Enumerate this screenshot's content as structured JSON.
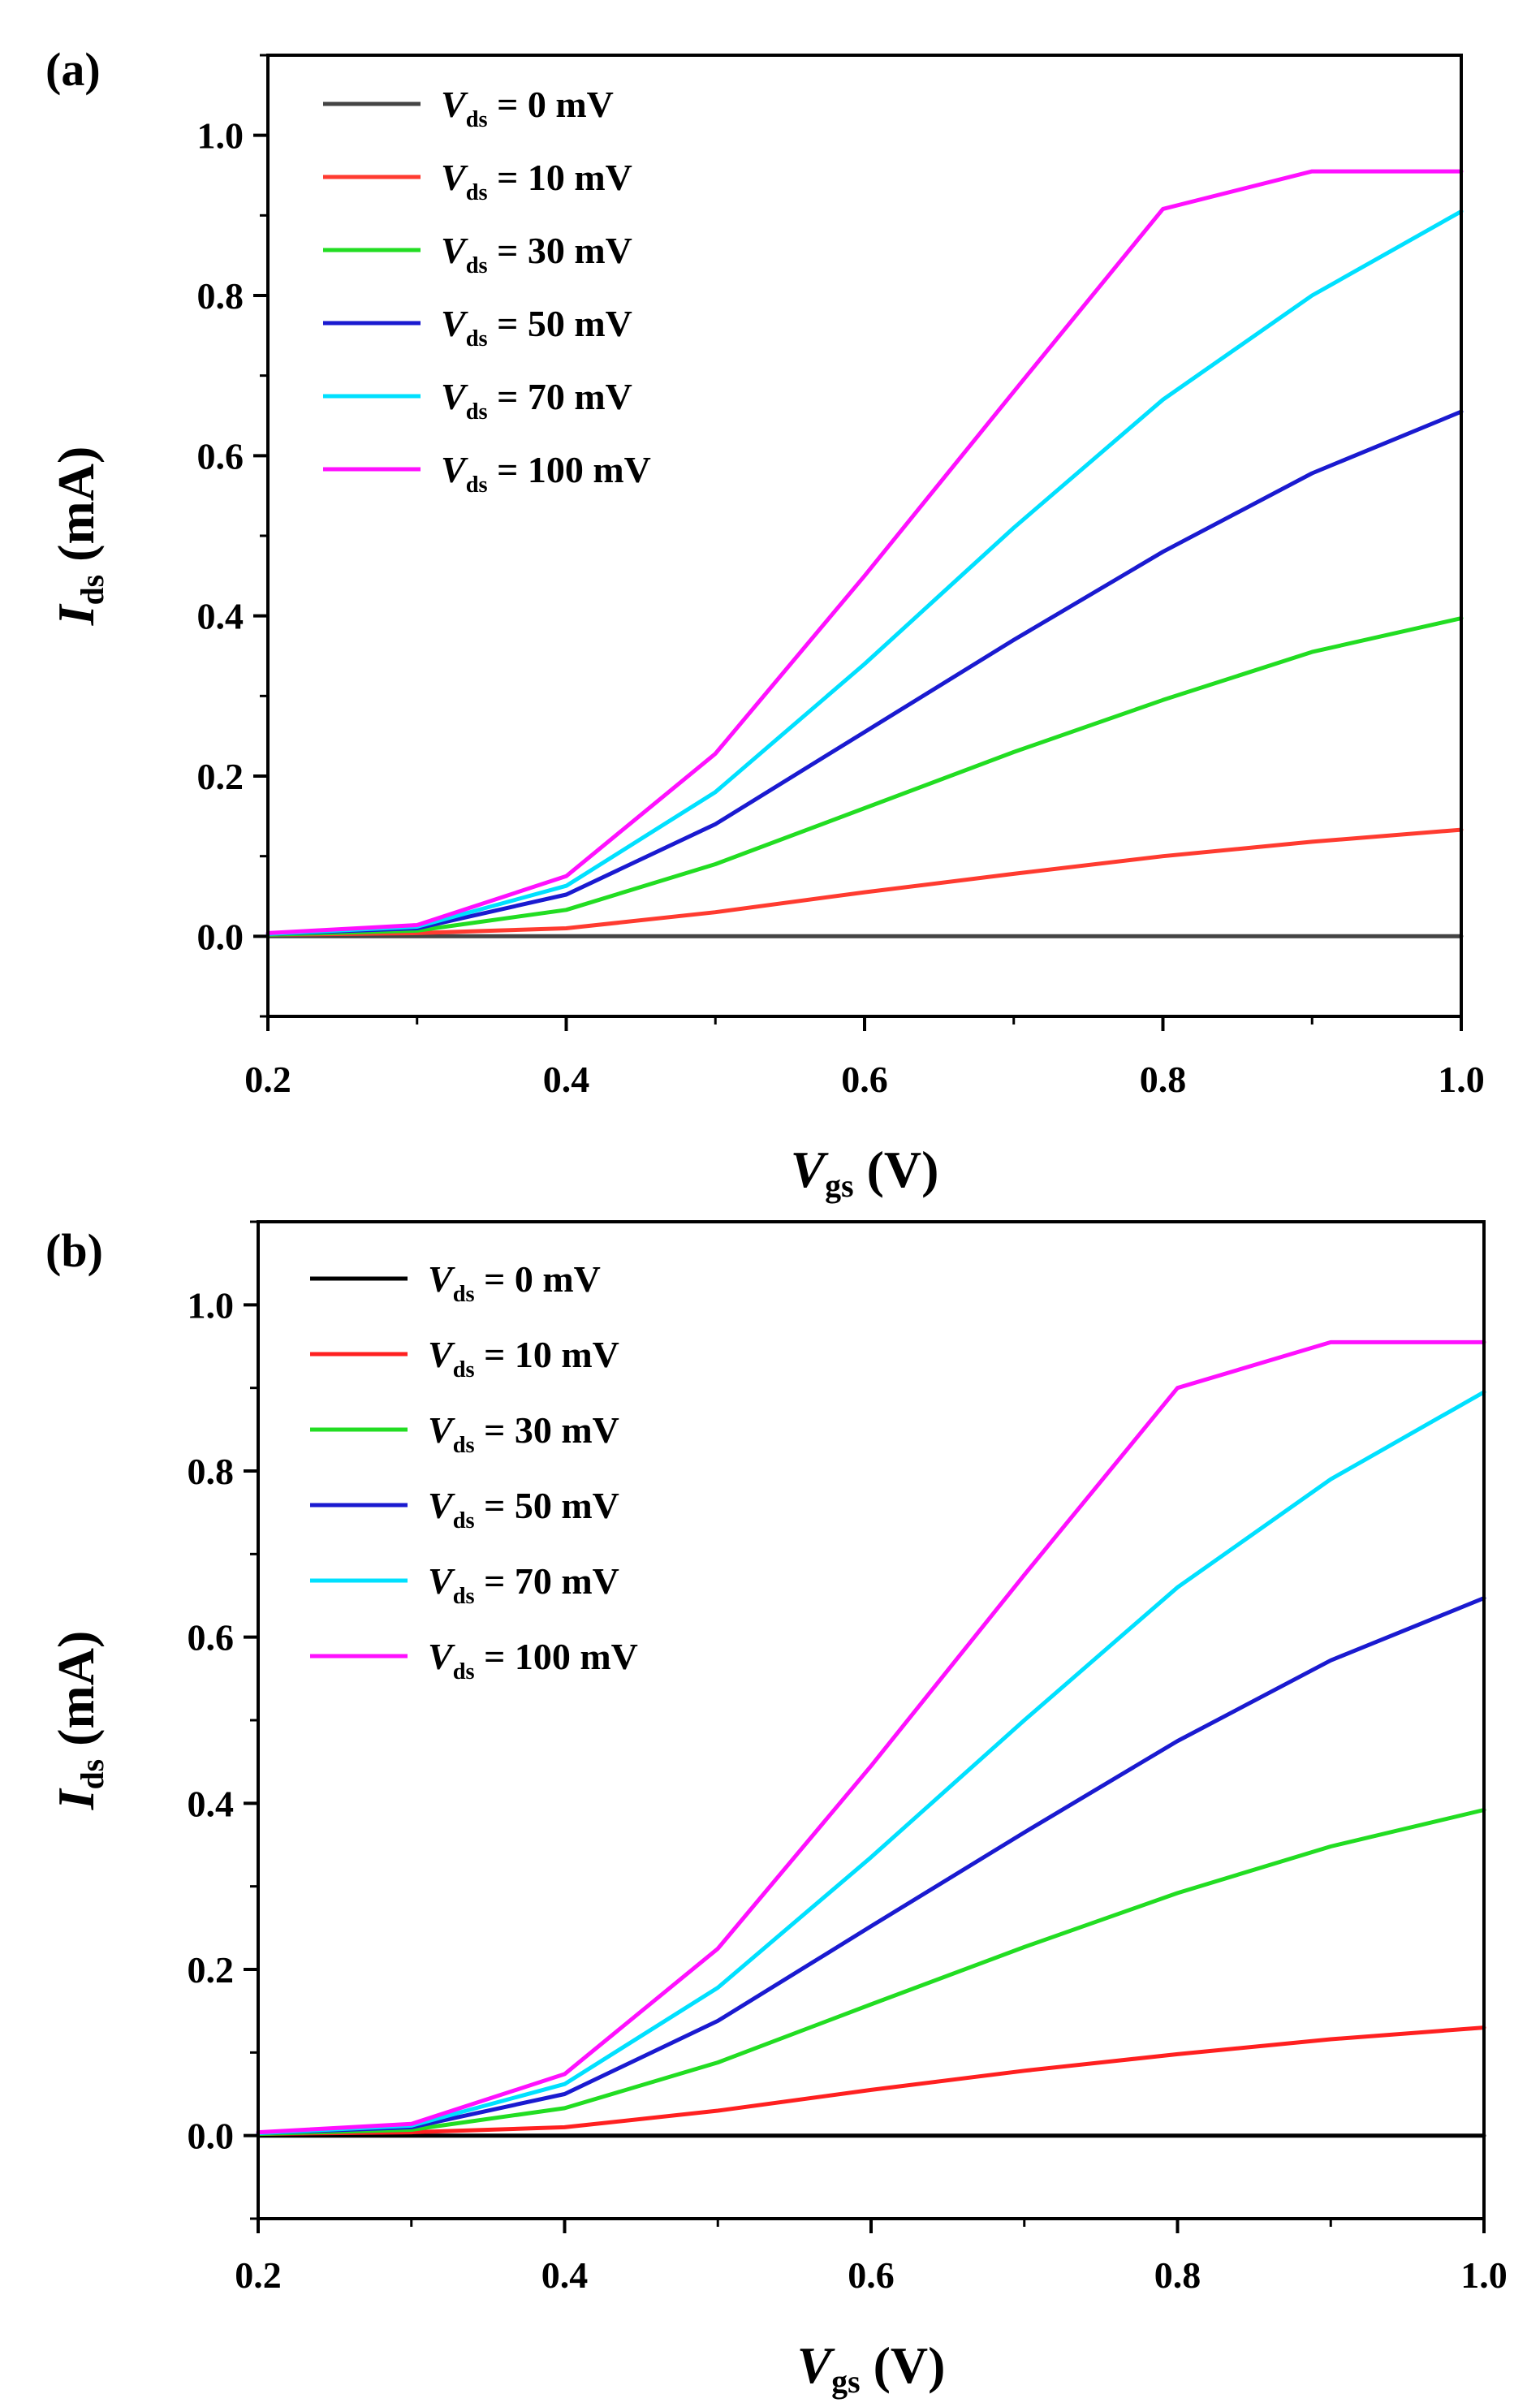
{
  "chart_data": [
    {
      "panel": "(a)",
      "type": "line",
      "xlabel": "V_gs (V)",
      "ylabel": "I_ds (mA)",
      "xlim": [
        0.2,
        1.0
      ],
      "ylim": [
        -0.1,
        1.1
      ],
      "xticks": [
        "0.2",
        "0.4",
        "0.6",
        "0.8",
        "1.0"
      ],
      "yticks": [
        "0.0",
        "0.2",
        "0.4",
        "0.6",
        "0.8",
        "1.0"
      ],
      "legend_position": "top-left",
      "x": [
        0.2,
        0.3,
        0.4,
        0.5,
        0.6,
        0.7,
        0.8,
        0.9,
        1.0
      ],
      "series": [
        {
          "name": "V_ds = 0 mV",
          "value_label": "0 mV",
          "color": "#444444",
          "values": [
            0,
            0,
            0,
            0,
            0,
            0,
            0,
            0,
            0
          ]
        },
        {
          "name": "V_ds = 10 mV",
          "value_label": "10 mV",
          "color": "#ff3b30",
          "values": [
            0.002,
            0.004,
            0.01,
            0.03,
            0.055,
            0.078,
            0.1,
            0.118,
            0.133
          ]
        },
        {
          "name": "V_ds = 30 mV",
          "value_label": "30 mV",
          "color": "#22dd22",
          "values": [
            0.002,
            0.007,
            0.033,
            0.09,
            0.16,
            0.23,
            0.295,
            0.355,
            0.397
          ]
        },
        {
          "name": "V_ds = 50 mV",
          "value_label": "50 mV",
          "color": "#1a1ad0",
          "values": [
            0.003,
            0.01,
            0.052,
            0.14,
            0.255,
            0.37,
            0.48,
            0.578,
            0.655
          ]
        },
        {
          "name": "V_ds = 70 mV",
          "value_label": "70 mV",
          "color": "#00e0ff",
          "values": [
            0.003,
            0.012,
            0.063,
            0.18,
            0.34,
            0.51,
            0.67,
            0.8,
            0.905
          ]
        },
        {
          "name": "V_ds = 100 mV",
          "value_label": "100 mV",
          "color": "#ff10ff",
          "values": [
            0.004,
            0.014,
            0.075,
            0.228,
            0.45,
            0.68,
            0.908,
            0.955,
            0.955
          ]
        }
      ]
    },
    {
      "panel": "(b)",
      "type": "line",
      "xlabel": "V_gs (V)",
      "ylabel": "I_ds (mA)",
      "xlim": [
        0.2,
        1.0
      ],
      "ylim": [
        -0.1,
        1.1
      ],
      "xticks": [
        "0.2",
        "0.4",
        "0.6",
        "0.8",
        "1.0"
      ],
      "yticks": [
        "0.0",
        "0.2",
        "0.4",
        "0.6",
        "0.8",
        "1.0"
      ],
      "legend_position": "top-left",
      "x": [
        0.2,
        0.3,
        0.4,
        0.5,
        0.6,
        0.7,
        0.8,
        0.9,
        1.0
      ],
      "series": [
        {
          "name": "V_ds = 0 mV",
          "value_label": "0 mV",
          "color": "#000000",
          "values": [
            0,
            0,
            0,
            0,
            0,
            0,
            0,
            0,
            0
          ]
        },
        {
          "name": "V_ds = 10 mV",
          "value_label": "10 mV",
          "color": "#ff2020",
          "values": [
            0.002,
            0.004,
            0.01,
            0.03,
            0.055,
            0.078,
            0.098,
            0.116,
            0.13
          ]
        },
        {
          "name": "V_ds = 30 mV",
          "value_label": "30 mV",
          "color": "#22dd22",
          "values": [
            0.002,
            0.007,
            0.033,
            0.088,
            0.158,
            0.227,
            0.292,
            0.348,
            0.392
          ]
        },
        {
          "name": "V_ds = 50 mV",
          "value_label": "50 mV",
          "color": "#1a1ad0",
          "values": [
            0.003,
            0.01,
            0.05,
            0.138,
            0.252,
            0.365,
            0.475,
            0.572,
            0.647
          ]
        },
        {
          "name": "V_ds = 70 mV",
          "value_label": "70 mV",
          "color": "#00e0ff",
          "values": [
            0.003,
            0.012,
            0.062,
            0.178,
            0.335,
            0.5,
            0.66,
            0.79,
            0.895
          ]
        },
        {
          "name": "V_ds = 100 mV",
          "value_label": "100 mV",
          "color": "#ff10ff",
          "values": [
            0.004,
            0.014,
            0.074,
            0.225,
            0.445,
            0.675,
            0.9,
            0.955,
            0.955
          ]
        }
      ]
    }
  ]
}
